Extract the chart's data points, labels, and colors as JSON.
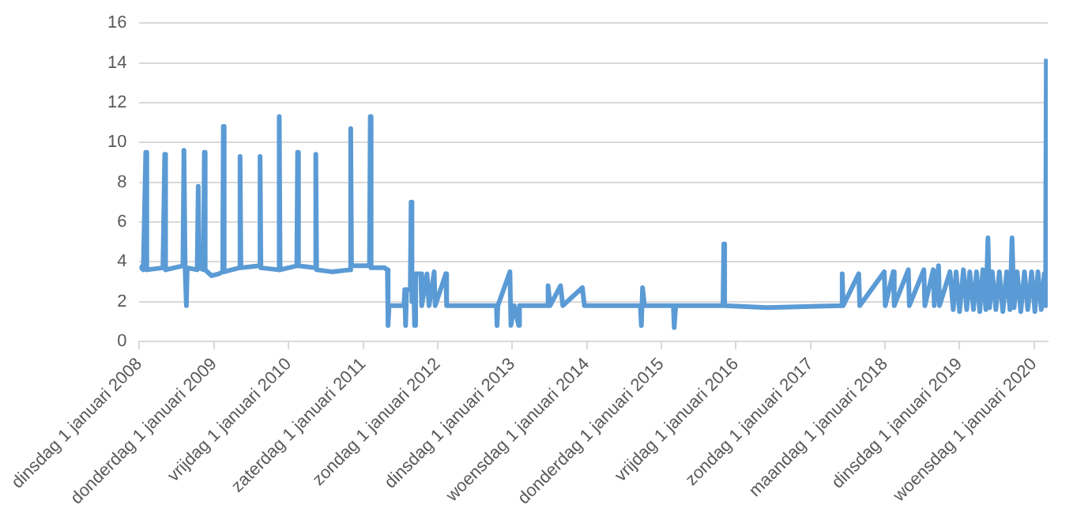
{
  "chart_data": {
    "type": "line",
    "grid": "y",
    "marker": "none",
    "xlim": [
      "2008-01-01",
      "2020-03-08"
    ],
    "ylim": [
      0,
      16
    ],
    "yticks": [
      0,
      2,
      4,
      6,
      8,
      10,
      12,
      14,
      16
    ],
    "xticks": [
      {
        "value": "2008-01-01",
        "label": "dinsdag 1 januari 2008"
      },
      {
        "value": "2009-01-01",
        "label": "donderdag 1 januari 2009"
      },
      {
        "value": "2010-01-01",
        "label": "vrijdag 1 januari 2010"
      },
      {
        "value": "2011-01-01",
        "label": "zaterdag 1 januari 2011"
      },
      {
        "value": "2012-01-01",
        "label": "zondag 1 januari 2012"
      },
      {
        "value": "2013-01-01",
        "label": "dinsdag 1 januari 2013"
      },
      {
        "value": "2014-01-01",
        "label": "woensdag 1 januari 2014"
      },
      {
        "value": "2015-01-01",
        "label": "donderdag 1 januari 2015"
      },
      {
        "value": "2016-01-01",
        "label": "vrijdag 1 januari 2016"
      },
      {
        "value": "2017-01-01",
        "label": "zondag 1 januari 2017"
      },
      {
        "value": "2018-01-01",
        "label": "maandag 1 januari 2018"
      },
      {
        "value": "2019-01-01",
        "label": "dinsdag 1 januari 2019"
      },
      {
        "value": "2020-01-01",
        "label": "woensdag 1 januari 2020"
      }
    ],
    "series": [
      {
        "color": "#5b9bd5",
        "x": [
          "2008-01-01",
          "2008-01-20",
          "2008-02-01",
          "2008-02-06",
          "2008-04-25",
          "2008-05-04",
          "2008-05-08",
          "2008-08-01",
          "2008-08-06",
          "2008-08-12",
          "2008-08-18",
          "2008-08-22",
          "2008-10-10",
          "2008-10-15",
          "2008-10-20",
          "2008-11-10",
          "2008-11-14",
          "2008-11-18",
          "2008-12-20",
          "2009-01-25",
          "2009-02-12",
          "2009-02-15",
          "2009-02-19",
          "2009-05-05",
          "2009-05-08",
          "2009-05-12",
          "2009-08-10",
          "2009-08-14",
          "2009-08-18",
          "2009-11-12",
          "2009-11-16",
          "2009-11-20",
          "2010-02-10",
          "2010-02-14",
          "2010-02-18",
          "2010-05-10",
          "2010-05-14",
          "2010-05-18",
          "2010-08-01",
          "2010-10-28",
          "2010-11-01",
          "2010-11-05",
          "2011-02-01",
          "2011-02-05",
          "2011-02-09",
          "2011-04-15",
          "2011-04-30",
          "2011-05-03",
          "2011-05-08",
          "2011-07-20",
          "2011-07-24",
          "2011-07-28",
          "2011-08-02",
          "2011-08-20",
          "2011-08-24",
          "2011-08-28",
          "2011-09-05",
          "2011-09-10",
          "2011-09-15",
          "2011-10-10",
          "2011-10-15",
          "2011-11-10",
          "2011-11-20",
          "2011-12-15",
          "2011-12-20",
          "2012-02-10",
          "2012-02-14",
          "2012-10-15",
          "2012-10-18",
          "2012-10-22",
          "2012-12-20",
          "2012-12-25",
          "2013-01-10",
          "2013-02-01",
          "2013-02-05",
          "2013-06-20",
          "2013-06-25",
          "2013-07-05",
          "2013-08-25",
          "2013-09-05",
          "2013-12-10",
          "2013-12-20",
          "2014-09-20",
          "2014-09-25",
          "2014-10-01",
          "2014-10-10",
          "2015-03-01",
          "2015-03-05",
          "2015-03-12",
          "2015-10-30",
          "2015-11-03",
          "2015-11-07",
          "2016-06-01",
          "2017-05-30",
          "2017-06-05",
          "2017-06-10",
          "2017-08-25",
          "2017-08-30",
          "2017-12-28",
          "2018-01-02",
          "2018-02-10",
          "2018-02-15",
          "2018-04-25",
          "2018-04-30",
          "2018-07-10",
          "2018-07-15",
          "2018-08-25",
          "2018-08-30",
          "2018-09-20",
          "2018-09-25",
          "2018-11-15",
          "2018-12-01",
          "2018-12-15",
          "2019-01-01",
          "2019-01-20",
          "2019-02-05",
          "2019-02-20",
          "2019-03-10",
          "2019-03-25",
          "2019-04-10",
          "2019-04-25",
          "2019-05-10",
          "2019-05-20",
          "2019-05-28",
          "2019-06-10",
          "2019-06-28",
          "2019-07-15",
          "2019-08-01",
          "2019-08-20",
          "2019-09-05",
          "2019-09-15",
          "2019-09-25",
          "2019-10-10",
          "2019-10-28",
          "2019-11-15",
          "2019-12-01",
          "2019-12-20",
          "2020-01-05",
          "2020-01-20",
          "2020-02-05",
          "2020-02-20",
          "2020-02-24",
          "2020-02-27",
          "2020-03-01"
        ],
        "values": [
          3.8,
          3.6,
          9.5,
          3.6,
          3.7,
          9.4,
          3.6,
          3.8,
          9.6,
          3.6,
          1.8,
          3.7,
          3.6,
          7.8,
          3.7,
          3.6,
          9.5,
          3.6,
          3.3,
          3.4,
          3.5,
          10.8,
          3.5,
          3.7,
          9.3,
          3.7,
          3.8,
          9.3,
          3.7,
          3.6,
          11.3,
          3.6,
          3.8,
          9.5,
          3.8,
          3.7,
          9.4,
          3.6,
          3.5,
          3.6,
          10.7,
          3.8,
          3.8,
          11.3,
          3.7,
          3.7,
          3.6,
          0.8,
          1.8,
          1.8,
          2.6,
          0.8,
          2.6,
          2.6,
          7.0,
          2.0,
          3.3,
          0.8,
          3.4,
          3.4,
          1.8,
          3.4,
          1.8,
          3.5,
          1.8,
          3.4,
          1.8,
          1.8,
          0.8,
          1.8,
          3.5,
          0.8,
          1.8,
          0.8,
          1.8,
          1.8,
          2.8,
          1.8,
          2.8,
          1.8,
          2.7,
          1.8,
          1.8,
          0.8,
          2.7,
          1.8,
          1.8,
          0.7,
          1.8,
          1.8,
          4.9,
          1.8,
          1.7,
          1.8,
          3.4,
          1.8,
          3.4,
          1.8,
          3.5,
          1.8,
          3.5,
          1.8,
          3.6,
          1.8,
          3.6,
          1.8,
          3.6,
          1.8,
          3.8,
          1.8,
          3.5,
          1.6,
          3.5,
          1.5,
          3.6,
          1.6,
          3.5,
          1.6,
          3.5,
          1.5,
          3.6,
          1.6,
          5.2,
          1.7,
          3.5,
          1.6,
          3.5,
          1.5,
          3.5,
          1.6,
          5.2,
          1.7,
          3.5,
          1.5,
          3.5,
          1.6,
          3.5,
          1.5,
          3.5,
          1.6,
          3.4,
          1.8,
          4.6,
          14.2
        ]
      }
    ]
  }
}
